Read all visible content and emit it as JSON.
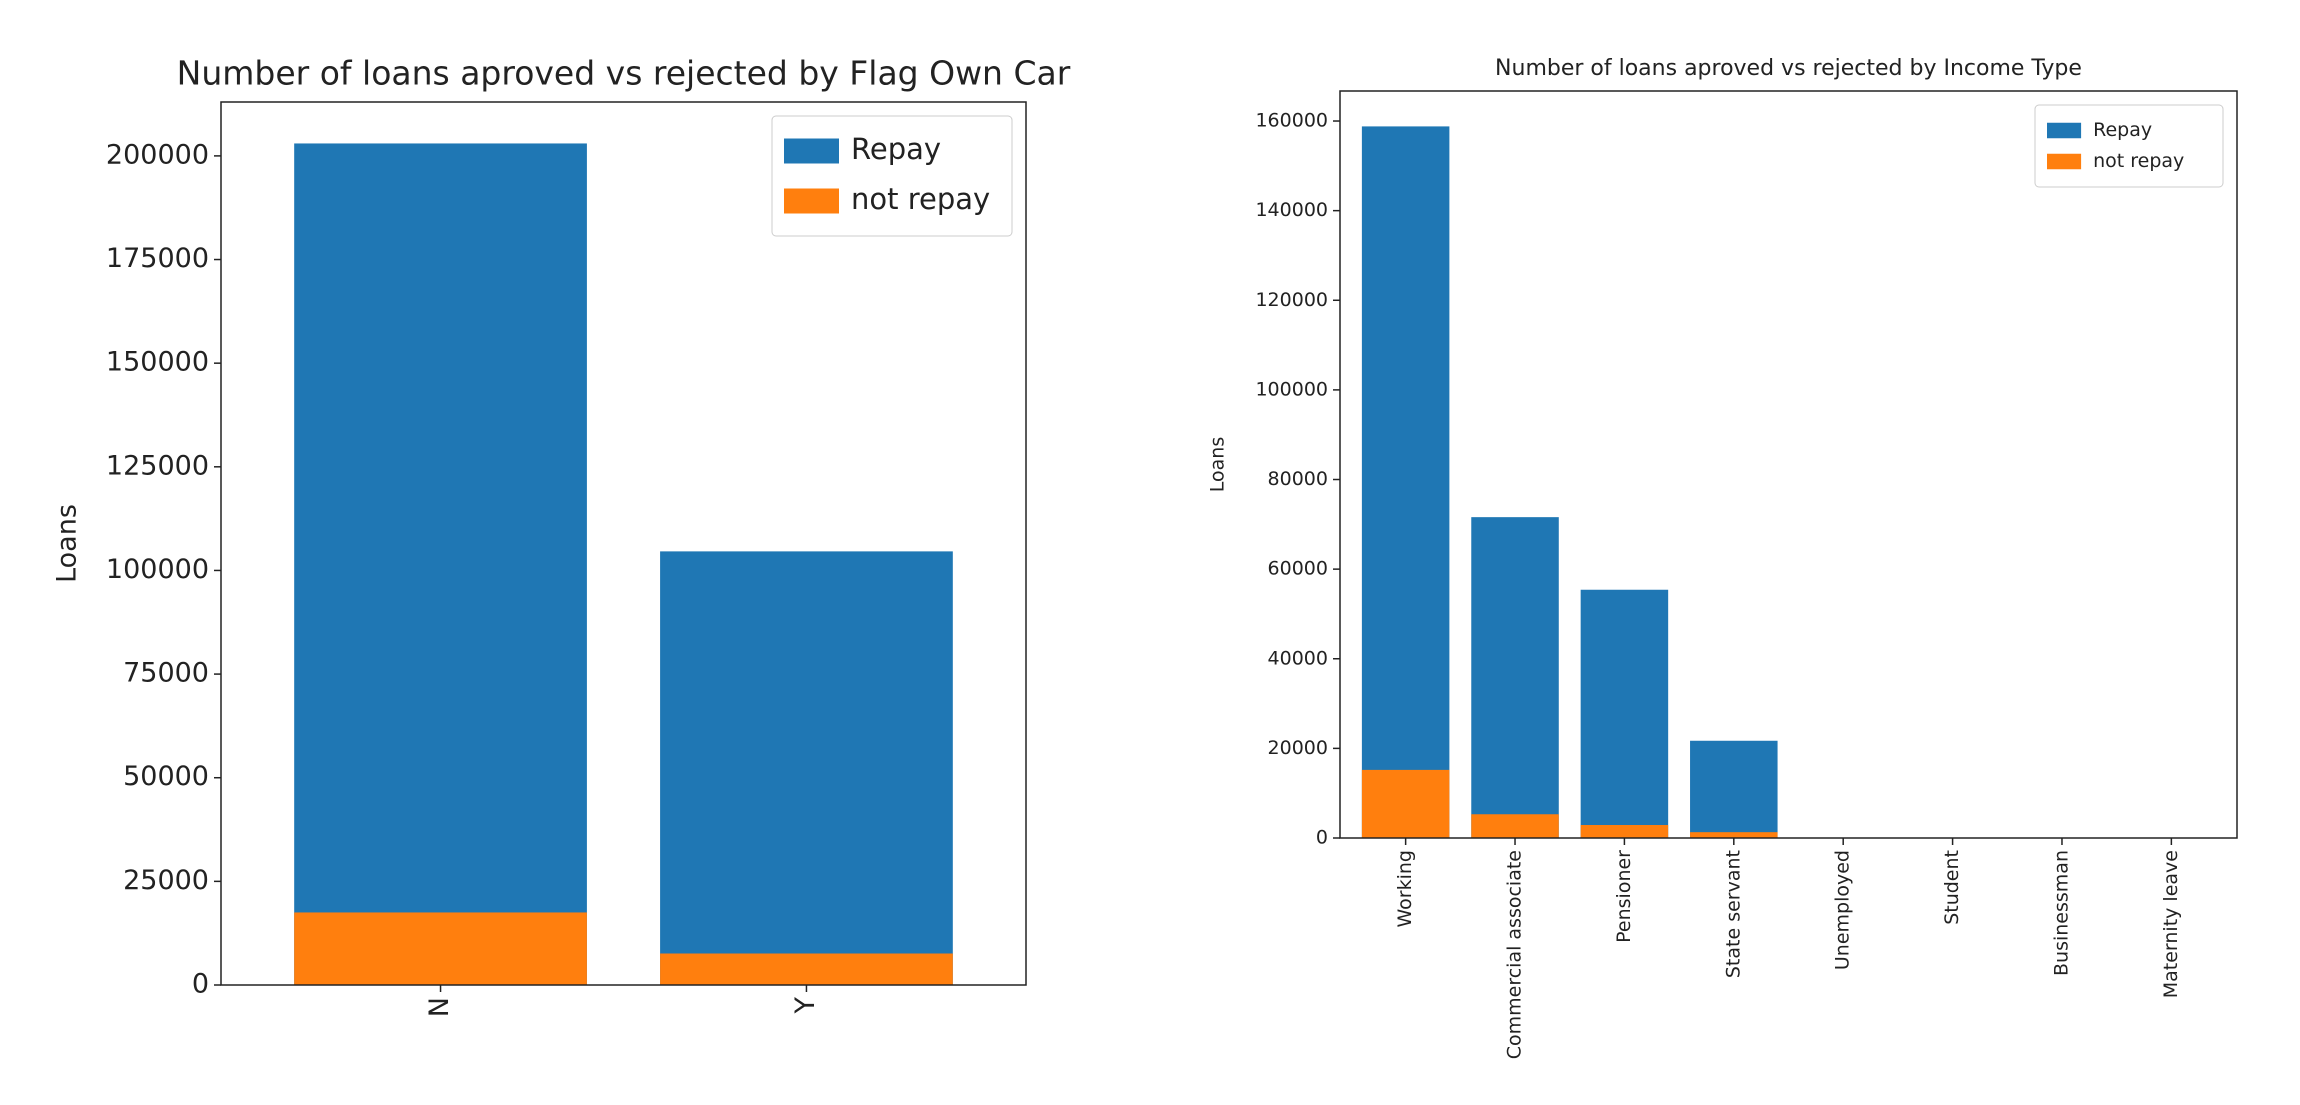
{
  "chart_data": [
    {
      "type": "bar",
      "title": "Number of loans aproved vs rejected by Flag Own Car",
      "ylabel": "Loans",
      "categories": [
        "N",
        "Y"
      ],
      "series": [
        {
          "name": "Repay",
          "color": "#1f77b4",
          "values": [
            203000,
            104600
          ]
        },
        {
          "name": "not repay",
          "color": "#ff7f0e",
          "values": [
            17500,
            7600
          ]
        }
      ],
      "ylim": [
        0,
        213000
      ],
      "yticks": [
        0,
        25000,
        50000,
        75000,
        100000,
        125000,
        150000,
        175000,
        200000
      ],
      "legend": "upper right"
    },
    {
      "type": "bar",
      "title": "Number of loans aproved vs rejected by Income Type",
      "ylabel": "Loans",
      "categories": [
        "Working",
        "Commercial associate",
        "Pensioner",
        "State servant",
        "Unemployed",
        "Student",
        "Businessman",
        "Maternity leave"
      ],
      "series": [
        {
          "name": "Repay",
          "color": "#1f77b4",
          "values": [
            158800,
            71600,
            55400,
            21700,
            0,
            0,
            0,
            0
          ]
        },
        {
          "name": "not repay",
          "color": "#ff7f0e",
          "values": [
            15200,
            5300,
            2900,
            1300,
            0,
            0,
            0,
            0
          ]
        }
      ],
      "ylim": [
        0,
        166700
      ],
      "yticks": [
        0,
        20000,
        40000,
        60000,
        80000,
        100000,
        120000,
        140000,
        160000
      ],
      "legend": "upper right"
    }
  ]
}
